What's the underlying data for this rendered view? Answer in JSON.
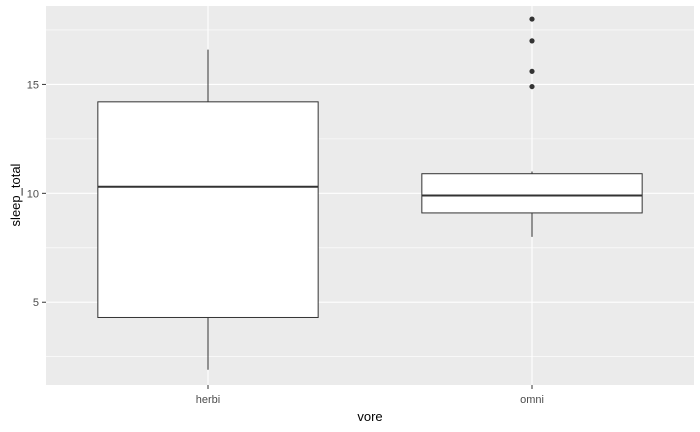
{
  "chart_data": {
    "type": "boxplot",
    "xlabel": "vore",
    "ylabel": "sleep_total",
    "categories": [
      "herbi",
      "omni"
    ],
    "ylim": [
      1.2,
      18.6
    ],
    "yticks": [
      5,
      10,
      15
    ],
    "yticks_minor": [
      2.5,
      7.5,
      12.5,
      17.5
    ],
    "boxes": [
      {
        "category": "herbi",
        "whisker_low": 1.9,
        "q1": 4.3,
        "median": 10.3,
        "q3": 14.2,
        "whisker_high": 16.6,
        "outliers": []
      },
      {
        "category": "omni",
        "whisker_low": 8.0,
        "q1": 9.1,
        "median": 9.9,
        "q3": 10.9,
        "whisker_high": 11.0,
        "outliers": [
          14.9,
          15.6,
          17.0,
          18.0
        ]
      }
    ],
    "grid": true,
    "panel_background": "#ebebeb",
    "box_fill": "#ffffff",
    "line_color": "#333333"
  }
}
